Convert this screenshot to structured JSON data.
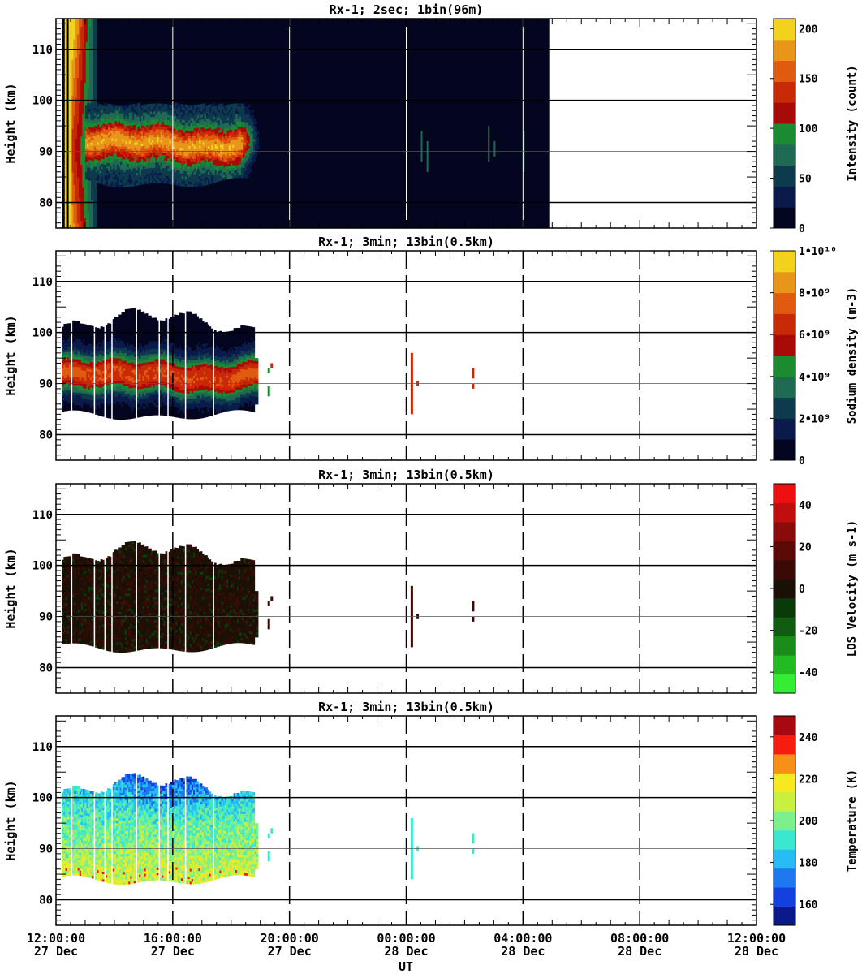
{
  "figure": {
    "x_axis": {
      "label": "UT",
      "ticks": [
        {
          "time": "12:00:00",
          "date": "27 Dec",
          "hours": 0
        },
        {
          "time": "16:00:00",
          "date": "27 Dec",
          "hours": 4
        },
        {
          "time": "20:00:00",
          "date": "27 Dec",
          "hours": 8
        },
        {
          "time": "00:00:00",
          "date": "28 Dec",
          "hours": 12
        },
        {
          "time": "04:00:00",
          "date": "28 Dec",
          "hours": 16
        },
        {
          "time": "08:00:00",
          "date": "28 Dec",
          "hours": 20
        },
        {
          "time": "12:00:00",
          "date": "28 Dec",
          "hours": 24
        }
      ]
    },
    "y_axis_label": "Height (km)",
    "y_ticks": [
      80,
      90,
      100,
      110
    ]
  },
  "chart_data": [
    {
      "type": "heatmap",
      "title": "Rx-1;  2sec; 1bin(96m)",
      "xlabel": "UT",
      "ylabel": "Height (km)",
      "xlim_hours_since_27dec_1200": [
        0,
        24
      ],
      "ylim": [
        75,
        116
      ],
      "colorbar": {
        "label": "Intensity (count)",
        "ticks": [
          "0",
          "50",
          "100",
          "150",
          "200"
        ],
        "range": [
          0,
          210
        ]
      },
      "colors": [
        "#040620",
        "#0a1a4a",
        "#0d3a4c",
        "#1e6a52",
        "#1c8a30",
        "#a80a08",
        "#c82a08",
        "#e05a10",
        "#e8961a",
        "#f2d21c"
      ],
      "data_extent_hours": [
        0.2,
        16.9
      ],
      "layer_peak_km": 90,
      "summary": "Strong intensity near 0.3-1.3 h at all heights; sodium layer 82-98 km until ~6.6 h; sparse weak returns 12-16.5 h"
    },
    {
      "type": "heatmap",
      "title": "Rx-1; 3min; 13bin(0.5km)",
      "xlabel": "UT",
      "ylabel": "Height (km)",
      "xlim_hours_since_27dec_1200": [
        0,
        24
      ],
      "ylim": [
        75,
        116
      ],
      "colorbar": {
        "label": "Sodium density (m-3)",
        "ticks": [
          "0",
          "2•10⁹",
          "4•10⁹",
          "6•10⁹",
          "8•10⁹",
          "1•10¹⁰"
        ],
        "range": [
          0,
          10000000000.0
        ]
      },
      "colors": [
        "#040620",
        "#0a1a4a",
        "#0d3a4c",
        "#1e6a52",
        "#1c8a30",
        "#a80a08",
        "#c82a08",
        "#e05a10",
        "#e8961a",
        "#f2d21c"
      ],
      "data_extent_hours": [
        0.2,
        6.9
      ],
      "layer_range_km": [
        82,
        105
      ],
      "peak_density": 7000000000.0,
      "peak_height_km": 91.5
    },
    {
      "type": "heatmap",
      "title": "Rx-1; 3min; 13bin(0.5km)",
      "xlabel": "UT",
      "ylabel": "Height (km)",
      "xlim_hours_since_27dec_1200": [
        0,
        24
      ],
      "ylim": [
        75,
        116
      ],
      "colorbar": {
        "label": "LOS Velocity (m s-1)",
        "ticks": [
          "-40",
          "-20",
          "0",
          "20",
          "40"
        ],
        "range": [
          -50,
          50
        ]
      },
      "colors": [
        "#33ee33",
        "#22bb22",
        "#1a8c1a",
        "#105c10",
        "#0a3a0a",
        "#1a1006",
        "#3a0a06",
        "#5c0a08",
        "#8a0c0a",
        "#c00e0e",
        "#ee1010"
      ],
      "data_extent_hours": [
        0.2,
        6.9
      ],
      "typical_velocity_range": [
        -5,
        8
      ]
    },
    {
      "type": "heatmap",
      "title": "Rx-1; 3min; 13bin(0.5km)",
      "xlabel": "UT",
      "ylabel": "Height (km)",
      "xlim_hours_since_27dec_1200": [
        0,
        24
      ],
      "ylim": [
        75,
        116
      ],
      "colorbar": {
        "label": "Temperature (K)",
        "ticks": [
          "160",
          "180",
          "200",
          "220",
          "240"
        ],
        "range": [
          150,
          250
        ]
      },
      "colors": [
        "#0a1a8a",
        "#1440e0",
        "#1e78f0",
        "#28bcf4",
        "#3ae8d0",
        "#7cf08c",
        "#c8f040",
        "#f8e820",
        "#f89018",
        "#f81c10",
        "#a80810"
      ],
      "data_extent_hours": [
        0.2,
        6.9
      ],
      "typical_temperature_range": [
        170,
        225
      ]
    }
  ]
}
